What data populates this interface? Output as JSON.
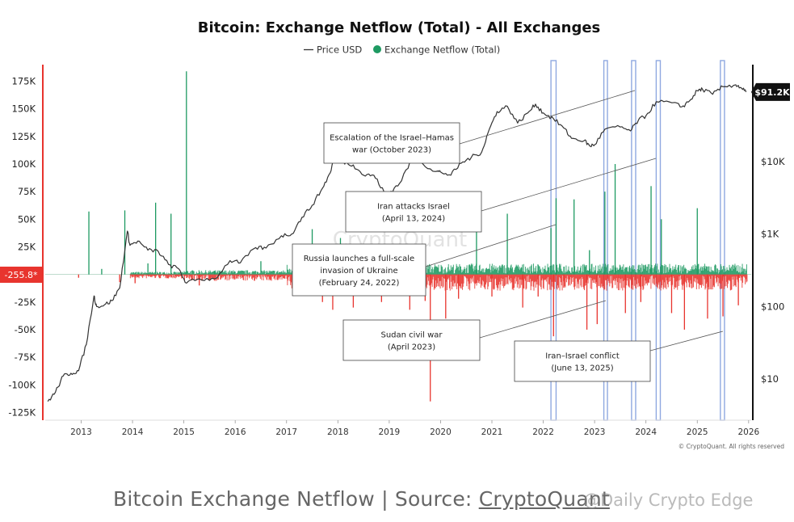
{
  "chart_data": {
    "type": "line",
    "title": "Bitcoin: Exchange Netflow (Total) - All Exchanges",
    "legend": [
      {
        "name": "Price USD",
        "symbol": "line",
        "color": "#333333"
      },
      {
        "name": "Exchange Netflow (Total)",
        "symbol": "dot",
        "color": "#1e9a62"
      }
    ],
    "legend_position": "top-center",
    "x_ticks": [
      "2013",
      "2014",
      "2015",
      "2016",
      "2017",
      "2018",
      "2019",
      "2020",
      "2021",
      "2022",
      "2023",
      "2024",
      "2025",
      "2026"
    ],
    "xlim": [
      2012.3,
      2026.05
    ],
    "left_axis": {
      "label": "",
      "ticks": [
        "175K",
        "150K",
        "125K",
        "100K",
        "75K",
        "50K",
        "25K",
        "0",
        "-25K",
        "-50K",
        "-75K",
        "-100K",
        "-125K"
      ],
      "tick_values": [
        175000,
        150000,
        125000,
        100000,
        75000,
        50000,
        25000,
        0,
        -25000,
        -50000,
        -75000,
        -100000,
        -125000
      ],
      "ylim": [
        -132000,
        190000
      ],
      "current_value_label": "-255.8*",
      "current_value": -255.8
    },
    "right_axis": {
      "label": "",
      "scale": "log",
      "ticks": [
        "$10K",
        "$1K",
        "$100",
        "$10"
      ],
      "tick_values": [
        10000,
        1000,
        100,
        10
      ],
      "current_value_label": "$91.2K",
      "current_value": 91200
    },
    "series": [
      {
        "name": "Price USD",
        "axis": "right",
        "type": "line",
        "color": "#333333",
        "x": [
          2012.35,
          2012.5,
          2012.65,
          2012.8,
          2012.95,
          2013.1,
          2013.25,
          2013.3,
          2013.45,
          2013.6,
          2013.75,
          2013.9,
          2013.95,
          2014.1,
          2014.3,
          2014.5,
          2014.7,
          2014.9,
          2015.05,
          2015.3,
          2015.6,
          2015.9,
          2016.1,
          2016.4,
          2016.6,
          2016.9,
          2017.1,
          2017.3,
          2017.5,
          2017.7,
          2017.85,
          2017.96,
          2018.1,
          2018.3,
          2018.5,
          2018.7,
          2018.9,
          2019.0,
          2019.2,
          2019.45,
          2019.6,
          2019.9,
          2020.0,
          2020.2,
          2020.4,
          2020.6,
          2020.8,
          2020.95,
          2021.1,
          2021.3,
          2021.5,
          2021.7,
          2021.85,
          2022.0,
          2022.2,
          2022.4,
          2022.55,
          2022.8,
          2022.9,
          2023.0,
          2023.2,
          2023.5,
          2023.7,
          2023.85,
          2024.0,
          2024.2,
          2024.5,
          2024.7,
          2024.85,
          2025.0,
          2025.1,
          2025.3,
          2025.5,
          2025.75,
          2025.85,
          2025.95
        ],
        "values": [
          4.9,
          6.6,
          11,
          12,
          13,
          30,
          140,
          100,
          105,
          120,
          180,
          1100,
          700,
          800,
          600,
          580,
          380,
          330,
          210,
          240,
          240,
          430,
          400,
          650,
          640,
          950,
          1000,
          1700,
          2500,
          4300,
          7000,
          14000,
          10000,
          9000,
          6500,
          6500,
          3800,
          3700,
          5000,
          11000,
          10000,
          7300,
          7200,
          6500,
          9500,
          11500,
          13500,
          28000,
          49000,
          58000,
          34000,
          47000,
          62000,
          47000,
          39000,
          29000,
          21000,
          19500,
          16500,
          17000,
          28000,
          30000,
          26500,
          37000,
          43000,
          67000,
          65000,
          57000,
          69000,
          95000,
          100000,
          85000,
          108000,
          115000,
          105000,
          91200
        ]
      },
      {
        "name": "Exchange Netflow (Total)",
        "axis": "left",
        "type": "bar",
        "color_positive": "#1e9a62",
        "color_negative": "#e8342e",
        "x": [
          2012.95,
          2013.15,
          2013.4,
          2013.75,
          2013.85,
          2014.05,
          2014.3,
          2014.45,
          2014.75,
          2015.05,
          2015.3,
          2015.6,
          2016.5,
          2017.2,
          2017.5,
          2017.7,
          2017.9,
          2018.05,
          2018.3,
          2018.6,
          2018.85,
          2019.1,
          2019.4,
          2019.7,
          2019.8,
          2020.1,
          2020.35,
          2020.7,
          2021.0,
          2021.3,
          2021.6,
          2021.9,
          2022.15,
          2022.2,
          2022.25,
          2022.4,
          2022.6,
          2022.85,
          2022.9,
          2023.05,
          2023.2,
          2023.4,
          2023.6,
          2023.9,
          2024.1,
          2024.3,
          2024.5,
          2024.75,
          2025.0,
          2025.2,
          2025.5,
          2025.8
        ],
        "values": [
          -3000,
          57000,
          5000,
          -7000,
          58000,
          -8000,
          10000,
          65000,
          55000,
          184000,
          -10000,
          3000,
          12000,
          -8000,
          41000,
          -25000,
          -32000,
          33000,
          -30000,
          -14000,
          -25000,
          -15000,
          -32000,
          -24000,
          -115000,
          -40000,
          -22000,
          50000,
          -20000,
          55000,
          -30000,
          -20000,
          42000,
          -56000,
          69000,
          -12000,
          68000,
          -50000,
          22000,
          -45000,
          75000,
          100000,
          -35000,
          -25000,
          80000,
          50000,
          -35000,
          -50000,
          60000,
          -40000,
          -38000,
          -28000
        ]
      }
    ],
    "highlight_bands": [
      "2022.15-2022.25",
      "2023.18-2023.25",
      "2023.72-2023.8",
      "2024.2-2024.28",
      "2025.45-2025.53"
    ],
    "annotations": [
      {
        "lines": [
          "Escalation of the Israel–Hamas",
          "war (October 2023)"
        ]
      },
      {
        "lines": [
          "Iran attacks Israel",
          "(April 13, 2024)"
        ]
      },
      {
        "lines": [
          "Russia launches a full-scale",
          "invasion of Ukraine",
          "(February 24, 2022)"
        ]
      },
      {
        "lines": [
          "Sudan civil war",
          "(April 2023)"
        ]
      },
      {
        "lines": [
          "Iran–Israel conflict",
          "(June 13, 2025)"
        ]
      }
    ],
    "watermark": "CryptoQuant",
    "copyright": "© CryptoQuant. All rights reserved",
    "grid": false
  },
  "footer": {
    "prefix": "Bitcoin Exchange Netflow | Source: ",
    "link": "CryptoQuant",
    "watermark": "@Daily Crypto Edge"
  }
}
